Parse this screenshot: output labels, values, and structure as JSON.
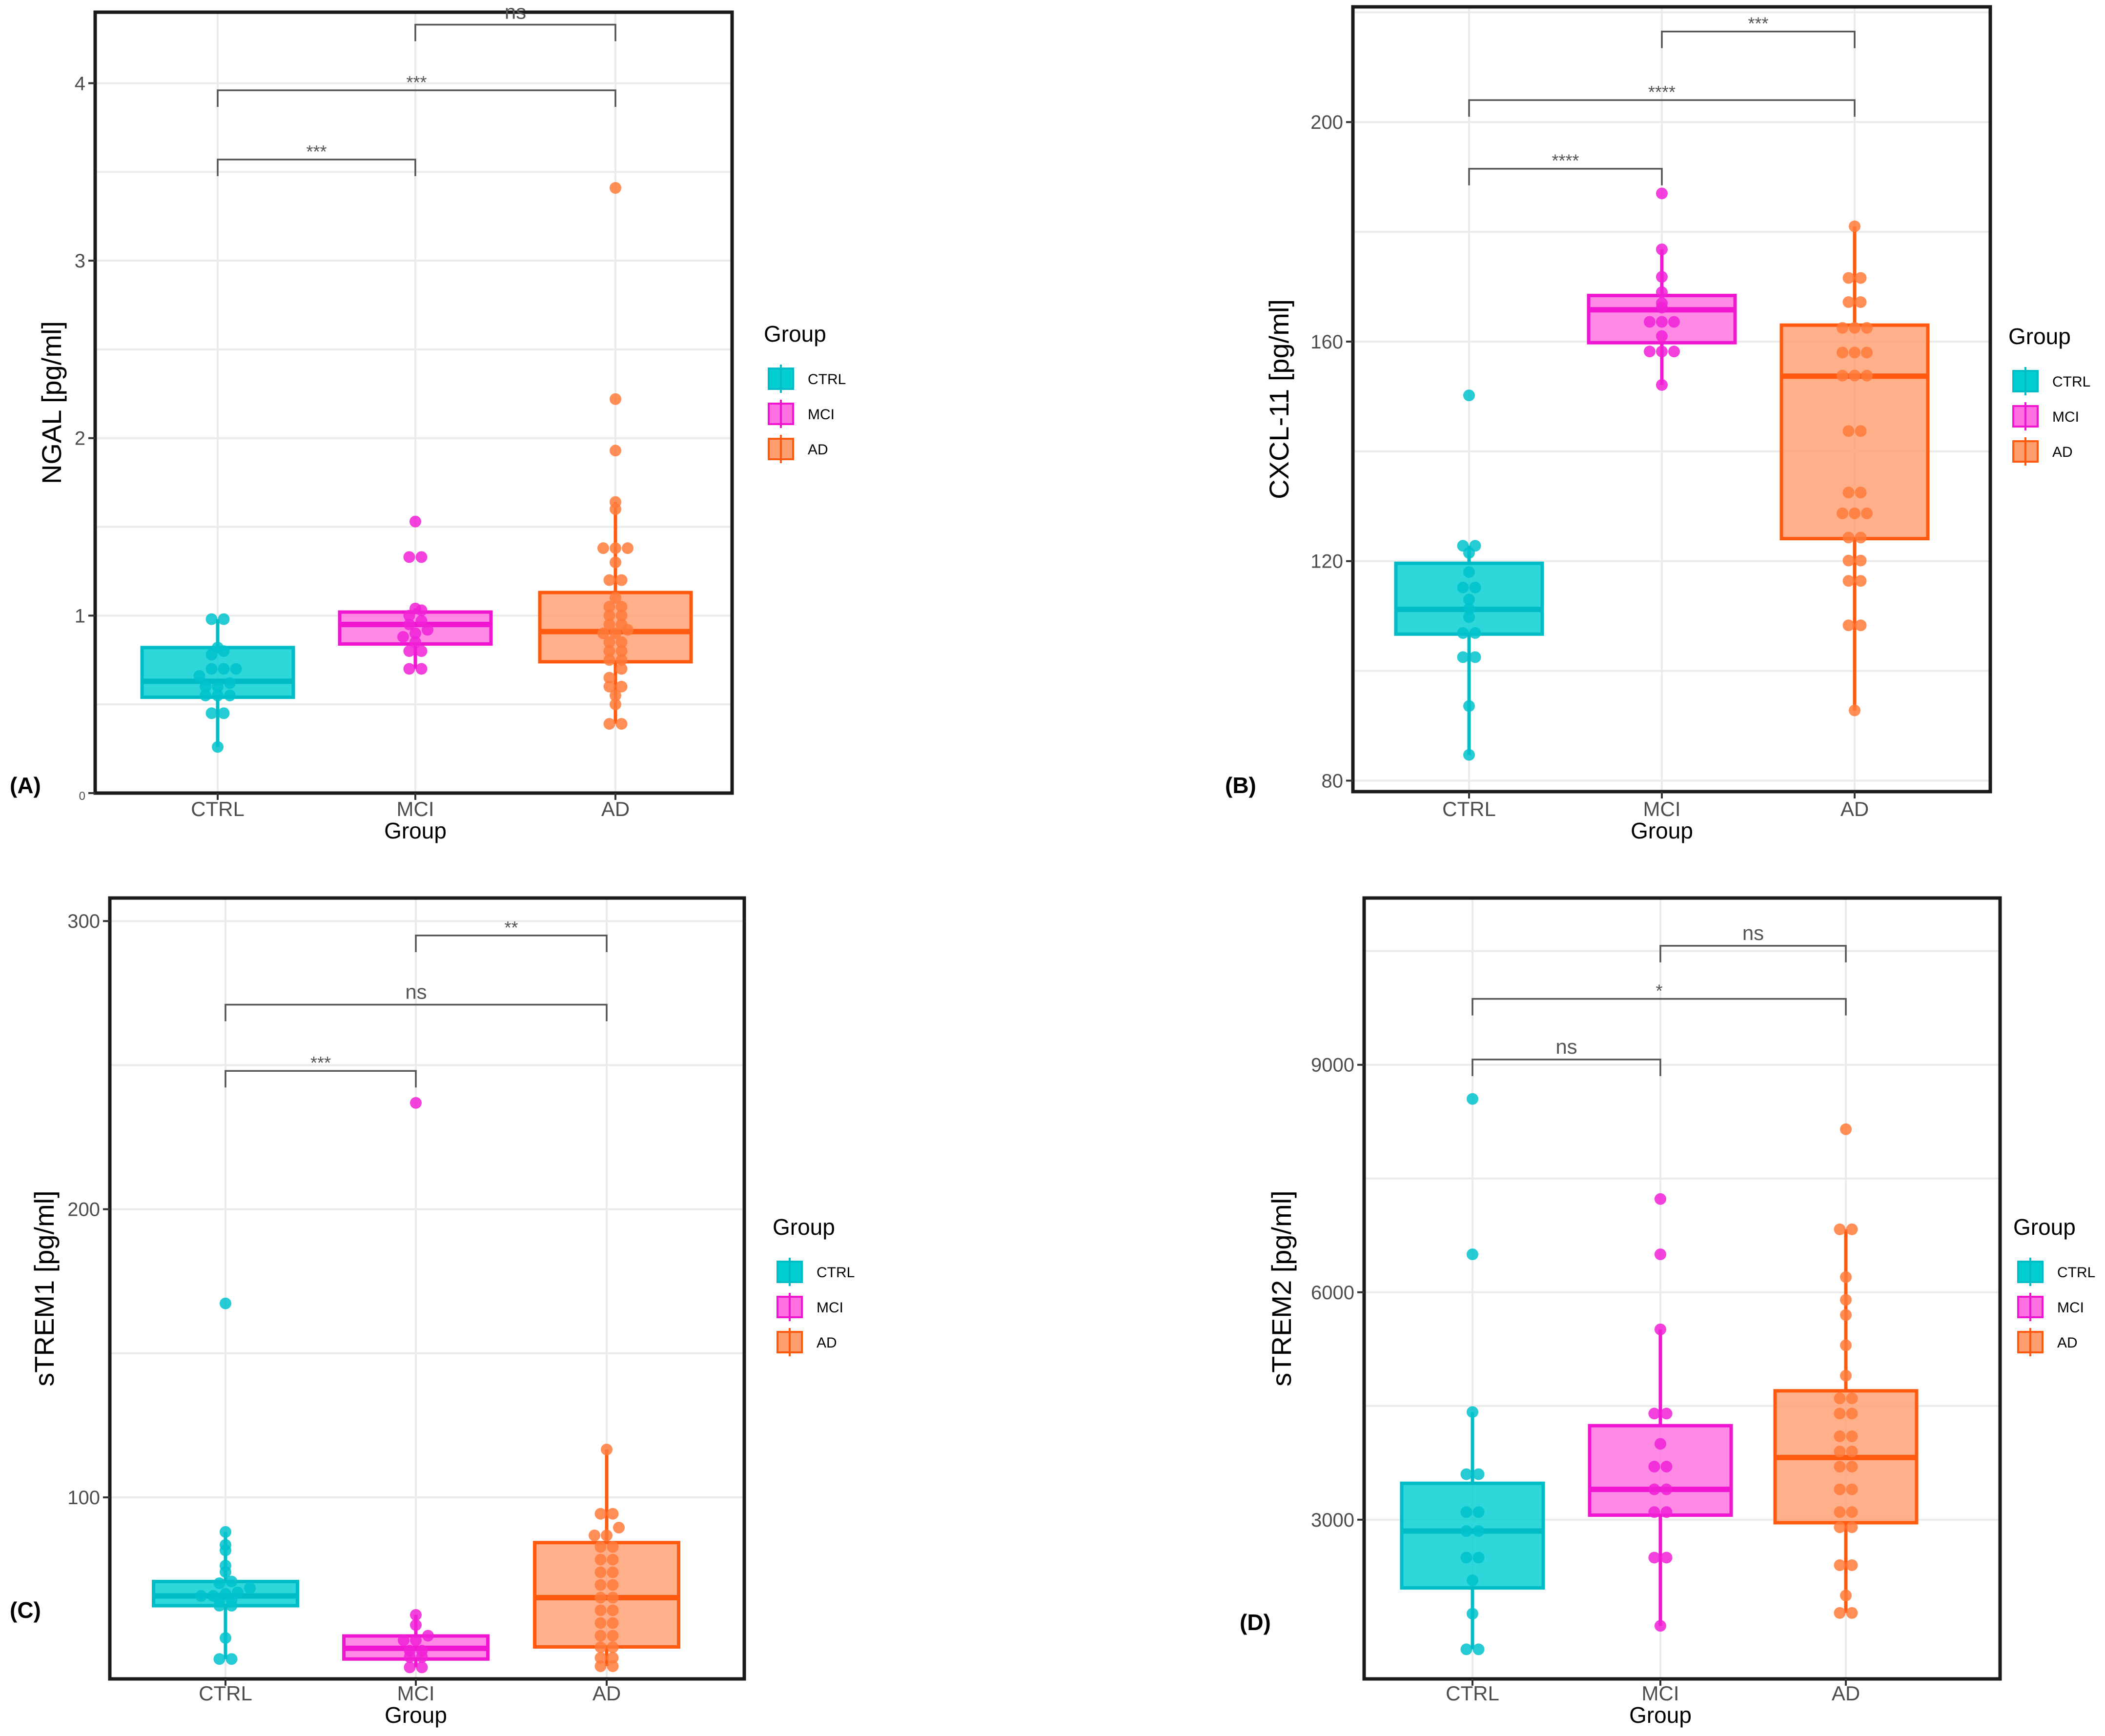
{
  "groups": [
    "CTRL",
    "MCI",
    "AD"
  ],
  "colors": {
    "CTRL": {
      "fill": "#00ced1",
      "stroke": "#00bcc6",
      "point": "#00c2cc"
    },
    "MCI": {
      "fill": "#ff70e0",
      "stroke": "#f015d0",
      "point": "#f020d6"
    },
    "AD": {
      "fill": "#ff9f70",
      "stroke": "#ff5a10",
      "point": "#ff7a3a"
    }
  },
  "legend": {
    "title": "Group",
    "items": [
      "CTRL",
      "MCI",
      "AD"
    ]
  },
  "chart_data": [
    {
      "panel": "(A)",
      "type": "box",
      "xlabel": "Group",
      "ylabel": "NGAL [pg/ml]",
      "categories": [
        "CTRL",
        "MCI",
        "AD"
      ],
      "ylim": [
        0,
        4.4
      ],
      "yticks": [
        0,
        1,
        2,
        3,
        4
      ],
      "yticklabels": [
        "0",
        "1",
        "2",
        "3",
        "4"
      ],
      "boxes": [
        {
          "group": "CTRL",
          "q1": 0.54,
          "median": 0.63,
          "q3": 0.82,
          "whisker_low": 0.26,
          "whisker_high": 0.98
        },
        {
          "group": "MCI",
          "q1": 0.84,
          "median": 0.95,
          "q3": 1.02,
          "whisker_low": 0.7,
          "whisker_high": 1.04
        },
        {
          "group": "AD",
          "q1": 0.74,
          "median": 0.91,
          "q3": 1.13,
          "whisker_low": 0.39,
          "whisker_high": 1.64
        }
      ],
      "points": {
        "CTRL": [
          0.26,
          0.45,
          0.45,
          0.55,
          0.55,
          0.55,
          0.6,
          0.6,
          0.62,
          0.66,
          0.7,
          0.7,
          0.7,
          0.78,
          0.8,
          0.82,
          0.98,
          0.98
        ],
        "MCI": [
          0.7,
          0.7,
          0.8,
          0.8,
          0.85,
          0.88,
          0.9,
          0.92,
          0.95,
          0.97,
          1.0,
          1.03,
          1.04,
          1.33,
          1.33,
          1.53
        ],
        "AD": [
          0.39,
          0.39,
          0.5,
          0.55,
          0.6,
          0.6,
          0.65,
          0.7,
          0.75,
          0.75,
          0.8,
          0.8,
          0.85,
          0.85,
          0.9,
          0.9,
          0.92,
          0.95,
          0.95,
          1.0,
          1.0,
          1.05,
          1.05,
          1.1,
          1.2,
          1.2,
          1.3,
          1.38,
          1.38,
          1.38,
          1.6,
          1.64,
          1.93,
          2.22,
          3.41
        ]
      },
      "comparisons": [
        {
          "from": "CTRL",
          "to": "MCI",
          "label": "***",
          "y": 3.57
        },
        {
          "from": "CTRL",
          "to": "AD",
          "label": "***",
          "y": 3.96
        },
        {
          "from": "MCI",
          "to": "AD",
          "label": "ns",
          "y": 4.33
        }
      ]
    },
    {
      "panel": "(B)",
      "type": "box",
      "xlabel": "Group",
      "ylabel": "CXCL-11 [pg/ml]",
      "categories": [
        "CTRL",
        "MCI",
        "AD"
      ],
      "ylim": [
        78,
        221
      ],
      "yticks": [
        80,
        120,
        160,
        200
      ],
      "yticklabels": [
        "80",
        "120",
        "160",
        "200"
      ],
      "boxes": [
        {
          "group": "CTRL",
          "q1": 106.7,
          "median": 111.2,
          "q3": 119.6,
          "whisker_low": 84.7,
          "whisker_high": 122.8
        },
        {
          "group": "MCI",
          "q1": 159.8,
          "median": 165.8,
          "q3": 168.4,
          "whisker_low": 152.1,
          "whisker_high": 176.8
        },
        {
          "group": "AD",
          "q1": 124.1,
          "median": 153.7,
          "q3": 163.0,
          "whisker_low": 92.8,
          "whisker_high": 181.0
        }
      ],
      "points": {
        "CTRL": [
          84.7,
          93.6,
          102.5,
          102.5,
          106.9,
          106.9,
          109.8,
          111.3,
          113.0,
          115.2,
          115.2,
          118.0,
          121.5,
          122.8,
          122.8,
          150.2
        ],
        "MCI": [
          152.1,
          158.2,
          158.2,
          158.2,
          161.0,
          163.6,
          163.6,
          163.6,
          166.2,
          167.0,
          169.0,
          171.8,
          176.8,
          187.0
        ],
        "AD": [
          92.8,
          108.3,
          108.3,
          116.4,
          116.4,
          120.1,
          120.1,
          124.3,
          124.3,
          128.7,
          128.7,
          128.7,
          132.5,
          132.5,
          143.7,
          143.7,
          153.8,
          153.8,
          153.8,
          158.0,
          158.0,
          158.0,
          162.5,
          162.5,
          162.5,
          167.2,
          167.2,
          171.6,
          171.6,
          181.0
        ]
      },
      "comparisons": [
        {
          "from": "CTRL",
          "to": "MCI",
          "label": "****",
          "y": 191.5
        },
        {
          "from": "CTRL",
          "to": "AD",
          "label": "****",
          "y": 204.0
        },
        {
          "from": "MCI",
          "to": "AD",
          "label": "***",
          "y": 216.5
        }
      ]
    },
    {
      "panel": "(C)",
      "type": "box",
      "xlabel": "Group",
      "ylabel": "sTREM1 [pg/ml]",
      "categories": [
        "CTRL",
        "MCI",
        "AD"
      ],
      "ylim": [
        37,
        308
      ],
      "yticks": [
        100,
        200,
        300
      ],
      "yticklabels": [
        "100",
        "200",
        "300"
      ],
      "boxes": [
        {
          "group": "CTRL",
          "q1": 62.4,
          "median": 65.8,
          "q3": 70.8,
          "whisker_low": 43.9,
          "whisker_high": 88.0
        },
        {
          "group": "MCI",
          "q1": 43.9,
          "median": 47.6,
          "q3": 51.9,
          "whisker_low": 41.0,
          "whisker_high": 59.2
        },
        {
          "group": "AD",
          "q1": 48.1,
          "median": 65.2,
          "q3": 84.3,
          "whisker_low": 41.4,
          "whisker_high": 116.6
        }
      ],
      "points": {
        "CTRL": [
          43.9,
          43.9,
          51.2,
          62.4,
          62.4,
          64.5,
          64.5,
          65.8,
          65.8,
          66.5,
          67.0,
          68.5,
          70.2,
          70.8,
          74.1,
          76.3,
          81.6,
          83.5,
          88.0,
          167.3
        ],
        "MCI": [
          41.0,
          41.0,
          44.6,
          44.6,
          46.8,
          46.8,
          50.4,
          50.4,
          52.0,
          55.7,
          59.2,
          236.9
        ],
        "AD": [
          41.4,
          41.4,
          44.3,
          44.3,
          48.0,
          48.0,
          52.0,
          52.0,
          56.4,
          56.4,
          60.8,
          60.8,
          65.2,
          65.2,
          69.6,
          69.6,
          74.0,
          74.0,
          78.4,
          78.4,
          82.8,
          82.8,
          86.8,
          86.8,
          89.5,
          94.3,
          94.3,
          116.6
        ]
      },
      "comparisons": [
        {
          "from": "CTRL",
          "to": "MCI",
          "label": "***",
          "y": 248
        },
        {
          "from": "CTRL",
          "to": "AD",
          "label": "ns",
          "y": 271
        },
        {
          "from": "MCI",
          "to": "AD",
          "label": "**",
          "y": 295
        }
      ]
    },
    {
      "panel": "(D)",
      "type": "box",
      "xlabel": "Group",
      "ylabel": "sTREM2 [pg/ml]",
      "categories": [
        "CTRL",
        "MCI",
        "AD"
      ],
      "ylim": [
        900,
        11200
      ],
      "yticks": [
        3000,
        6000,
        9000
      ],
      "yticklabels": [
        "3000",
        "6000",
        "9000"
      ],
      "boxes": [
        {
          "group": "CTRL",
          "q1": 2100,
          "median": 2850,
          "q3": 3480,
          "whisker_low": 1290,
          "whisker_high": 4420
        },
        {
          "group": "MCI",
          "q1": 3060,
          "median": 3400,
          "q3": 4240,
          "whisker_low": 1600,
          "whisker_high": 5510
        },
        {
          "group": "AD",
          "q1": 2960,
          "median": 3820,
          "q3": 4700,
          "whisker_low": 1770,
          "whisker_high": 6830
        }
      ],
      "points": {
        "CTRL": [
          1290,
          1290,
          1760,
          2200,
          2500,
          2500,
          2850,
          2850,
          3100,
          3100,
          3600,
          3600,
          4420,
          6500,
          8550
        ],
        "MCI": [
          1600,
          2500,
          2500,
          3100,
          3100,
          3400,
          3400,
          3700,
          3700,
          4000,
          4400,
          4400,
          5510,
          6500,
          7230
        ],
        "AD": [
          1770,
          1770,
          2000,
          2400,
          2400,
          2900,
          2900,
          3100,
          3100,
          3400,
          3400,
          3700,
          3700,
          3900,
          3900,
          4100,
          4100,
          4400,
          4400,
          4600,
          4600,
          4900,
          5300,
          5700,
          5900,
          6200,
          6830,
          6830,
          8150
        ]
      },
      "comparisons": [
        {
          "from": "CTRL",
          "to": "MCI",
          "label": "ns",
          "y": 9070
        },
        {
          "from": "CTRL",
          "to": "AD",
          "label": "*",
          "y": 9870
        },
        {
          "from": "MCI",
          "to": "AD",
          "label": "ns",
          "y": 10570
        }
      ]
    }
  ]
}
